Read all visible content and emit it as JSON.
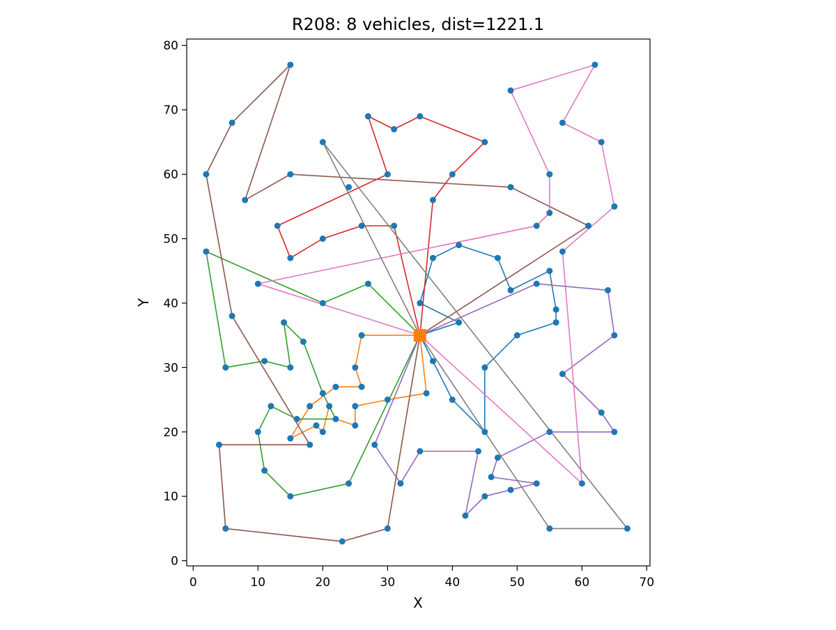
{
  "chart_data": {
    "type": "scatter",
    "title": "R208: 8 vehicles, dist=1221.1",
    "xlabel": "X",
    "ylabel": "Y",
    "xlim": [
      -1,
      70.5
    ],
    "ylim": [
      -0.8,
      81
    ],
    "xticks": [
      0,
      10,
      20,
      30,
      40,
      50,
      60,
      70
    ],
    "yticks": [
      0,
      10,
      20,
      30,
      40,
      50,
      60,
      70,
      80
    ],
    "grid": false,
    "legend": "none",
    "depot": {
      "x": 35,
      "y": 35,
      "color": "#ff7f0e",
      "marker": "square"
    },
    "point_color": "#1f77b4",
    "routes": [
      {
        "color": "#1f77b4",
        "points": [
          [
            35,
            35
          ],
          [
            37,
            31
          ],
          [
            40,
            25
          ],
          [
            45,
            20
          ],
          [
            45,
            30
          ],
          [
            50,
            35
          ],
          [
            56,
            37
          ],
          [
            56,
            39
          ],
          [
            55,
            45
          ],
          [
            49,
            42
          ],
          [
            47,
            47
          ],
          [
            41,
            49
          ],
          [
            37,
            47
          ],
          [
            35,
            40
          ],
          [
            41,
            37
          ],
          [
            35,
            35
          ]
        ]
      },
      {
        "color": "#ff7f0e",
        "points": [
          [
            35,
            35
          ],
          [
            26,
            35
          ],
          [
            25,
            30
          ],
          [
            26,
            27
          ],
          [
            22,
            27
          ],
          [
            18,
            24
          ],
          [
            15,
            19
          ],
          [
            19,
            21
          ],
          [
            20,
            20
          ],
          [
            21,
            24
          ],
          [
            22,
            22
          ],
          [
            25,
            21
          ],
          [
            25,
            24
          ],
          [
            30,
            25
          ],
          [
            36,
            26
          ],
          [
            35,
            35
          ]
        ]
      },
      {
        "color": "#2ca02c",
        "points": [
          [
            35,
            35
          ],
          [
            27,
            43
          ],
          [
            20,
            40
          ],
          [
            2,
            48
          ],
          [
            5,
            30
          ],
          [
            11,
            31
          ],
          [
            15,
            30
          ],
          [
            14,
            37
          ],
          [
            17,
            34
          ],
          [
            20,
            26
          ],
          [
            22,
            22
          ],
          [
            16,
            22
          ],
          [
            12,
            24
          ],
          [
            10,
            20
          ],
          [
            11,
            14
          ],
          [
            15,
            10
          ],
          [
            24,
            12
          ],
          [
            35,
            35
          ]
        ]
      },
      {
        "color": "#d62728",
        "points": [
          [
            35,
            35
          ],
          [
            31,
            52
          ],
          [
            26,
            52
          ],
          [
            20,
            50
          ],
          [
            15,
            47
          ],
          [
            13,
            52
          ],
          [
            30,
            60
          ],
          [
            27,
            69
          ],
          [
            31,
            67
          ],
          [
            35,
            69
          ],
          [
            45,
            65
          ],
          [
            40,
            60
          ],
          [
            37,
            56
          ],
          [
            35,
            35
          ]
        ]
      },
      {
        "color": "#9467bd",
        "points": [
          [
            35,
            35
          ],
          [
            53,
            43
          ],
          [
            64,
            42
          ],
          [
            65,
            35
          ],
          [
            57,
            29
          ],
          [
            63,
            23
          ],
          [
            65,
            20
          ],
          [
            55,
            20
          ],
          [
            47,
            16
          ],
          [
            46,
            13
          ],
          [
            53,
            12
          ],
          [
            49,
            11
          ],
          [
            45,
            10
          ],
          [
            42,
            7
          ],
          [
            44,
            17
          ],
          [
            35,
            17
          ],
          [
            32,
            12
          ],
          [
            28,
            18
          ],
          [
            35,
            35
          ]
        ]
      },
      {
        "color": "#8c564b",
        "points": [
          [
            35,
            35
          ],
          [
            61,
            52
          ],
          [
            49,
            58
          ],
          [
            15,
            60
          ],
          [
            8,
            56
          ],
          [
            15,
            77
          ],
          [
            6,
            68
          ],
          [
            2,
            60
          ],
          [
            6,
            38
          ],
          [
            18,
            18
          ],
          [
            4,
            18
          ],
          [
            5,
            5
          ],
          [
            23,
            3
          ],
          [
            30,
            5
          ],
          [
            35,
            35
          ]
        ]
      },
      {
        "color": "#e377c2",
        "points": [
          [
            35,
            35
          ],
          [
            10,
            43
          ],
          [
            53,
            52
          ],
          [
            55,
            54
          ],
          [
            55,
            60
          ],
          [
            49,
            73
          ],
          [
            62,
            77
          ],
          [
            57,
            68
          ],
          [
            63,
            65
          ],
          [
            65,
            55
          ],
          [
            57,
            48
          ],
          [
            60,
            12
          ],
          [
            35,
            35
          ]
        ]
      },
      {
        "color": "#7f7f7f",
        "points": [
          [
            35,
            35
          ],
          [
            20,
            65
          ],
          [
            67,
            5
          ],
          [
            55,
            5
          ],
          [
            35,
            35
          ]
        ]
      }
    ],
    "extra_points": [
      [
        24,
        58
      ]
    ]
  }
}
